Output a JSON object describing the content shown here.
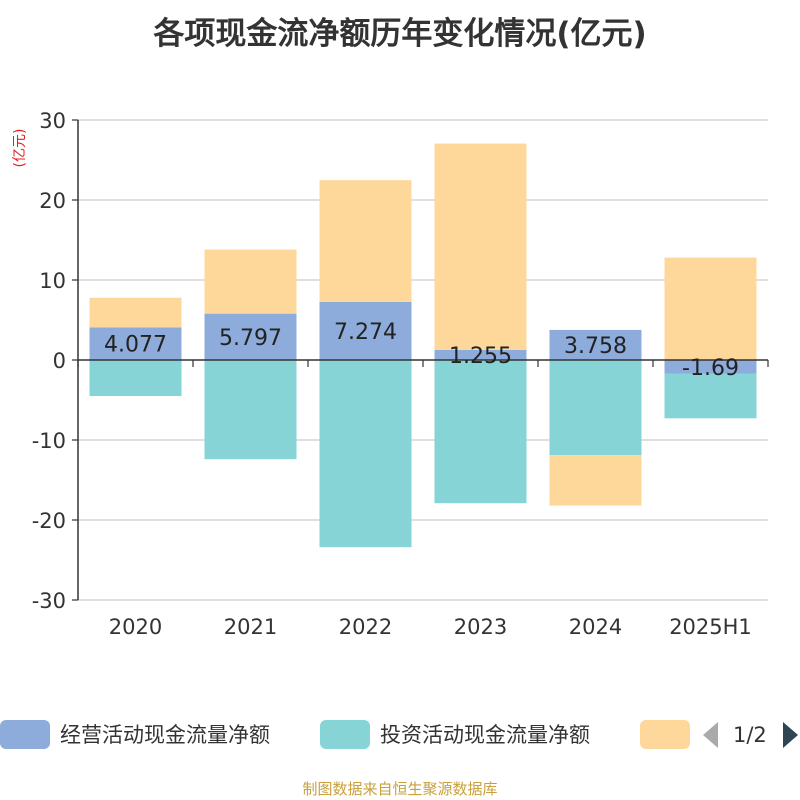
{
  "title": "各项现金流净额历年变化情况(亿元)",
  "footer": "制图数据来自恒生聚源数据库",
  "legend": {
    "page": "1/2"
  },
  "colors": {
    "operating": "#8eacdb",
    "investing": "#86d4d6",
    "financing": "#fdd89a"
  },
  "chart_data": {
    "type": "bar",
    "stacked": true,
    "title": "各项现金流净额历年变化情况(亿元)",
    "unit_label": "(亿元)",
    "categories": [
      "2020",
      "2021",
      "2022",
      "2023",
      "2024",
      "2025H1"
    ],
    "ylim": [
      -30,
      30
    ],
    "yticks": [
      "30",
      "20",
      "10",
      "0",
      "-10",
      "-20",
      "-30"
    ],
    "grid": true,
    "legend_position": "bottom",
    "series": [
      {
        "name": "经营活动现金流量净额",
        "values": [
          4.077,
          5.797,
          7.274,
          1.255,
          3.758,
          -1.69
        ],
        "labels": [
          "4.077",
          "5.797",
          "7.274",
          "1.255",
          "3.758",
          "-1.69"
        ]
      },
      {
        "name": "投资活动现金流量净额",
        "values": [
          -4.5,
          -12.4,
          -23.4,
          -17.9,
          -11.9,
          -5.6
        ]
      },
      {
        "name": "",
        "values": [
          3.7,
          8.0,
          15.2,
          25.8,
          -6.3,
          12.8
        ]
      }
    ]
  }
}
